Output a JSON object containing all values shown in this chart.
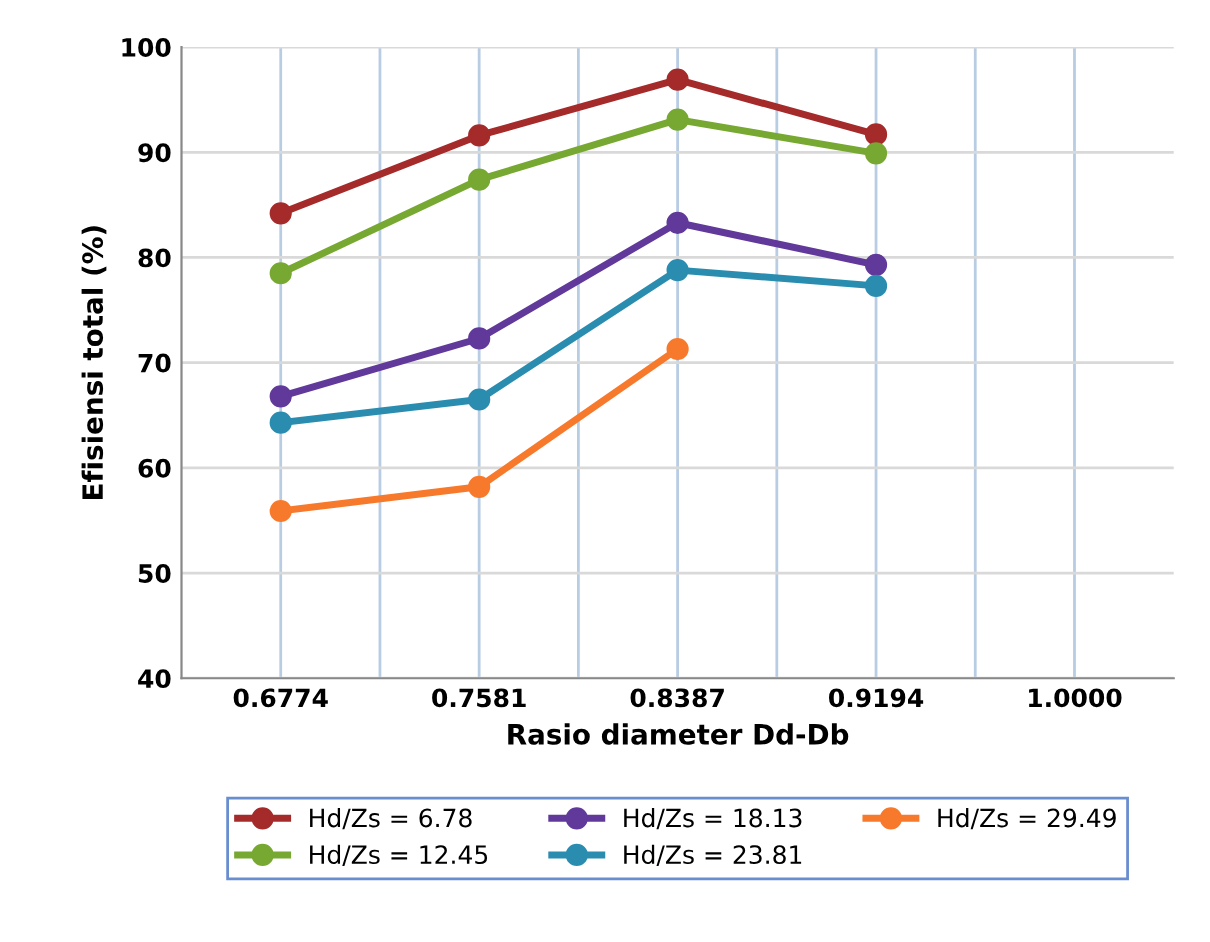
{
  "chart_data": {
    "type": "line",
    "xlabel": "Rasio diameter Dd-Db",
    "ylabel": "Efisiensi total (%)",
    "categories": [
      "0.6774",
      "0.7581",
      "0.8387",
      "0.9194",
      "1.0000"
    ],
    "series": [
      {
        "name": "Hd/Zs = 6.78",
        "color": "#a52a2a",
        "values": [
          84.2,
          91.6,
          96.9,
          91.7,
          null
        ]
      },
      {
        "name": "Hd/Zs = 12.45",
        "color": "#77a832",
        "values": [
          78.5,
          87.4,
          93.1,
          89.9,
          null
        ]
      },
      {
        "name": "Hd/Zs = 18.13",
        "color": "#60399a",
        "values": [
          66.8,
          72.3,
          83.3,
          79.3,
          null
        ]
      },
      {
        "name": "Hd/Zs = 23.81",
        "color": "#2a8db0",
        "values": [
          64.3,
          66.5,
          78.8,
          77.3,
          null
        ]
      },
      {
        "name": "Hd/Zs = 29.49",
        "color": "#f7792b",
        "values": [
          55.9,
          58.2,
          71.3,
          null,
          null
        ]
      }
    ],
    "ylim": [
      40,
      100
    ],
    "yticks": [
      40,
      50,
      60,
      70,
      80,
      90,
      100
    ],
    "grid": true,
    "legend": "bottom",
    "marker": "circle",
    "line_style": "solid"
  }
}
